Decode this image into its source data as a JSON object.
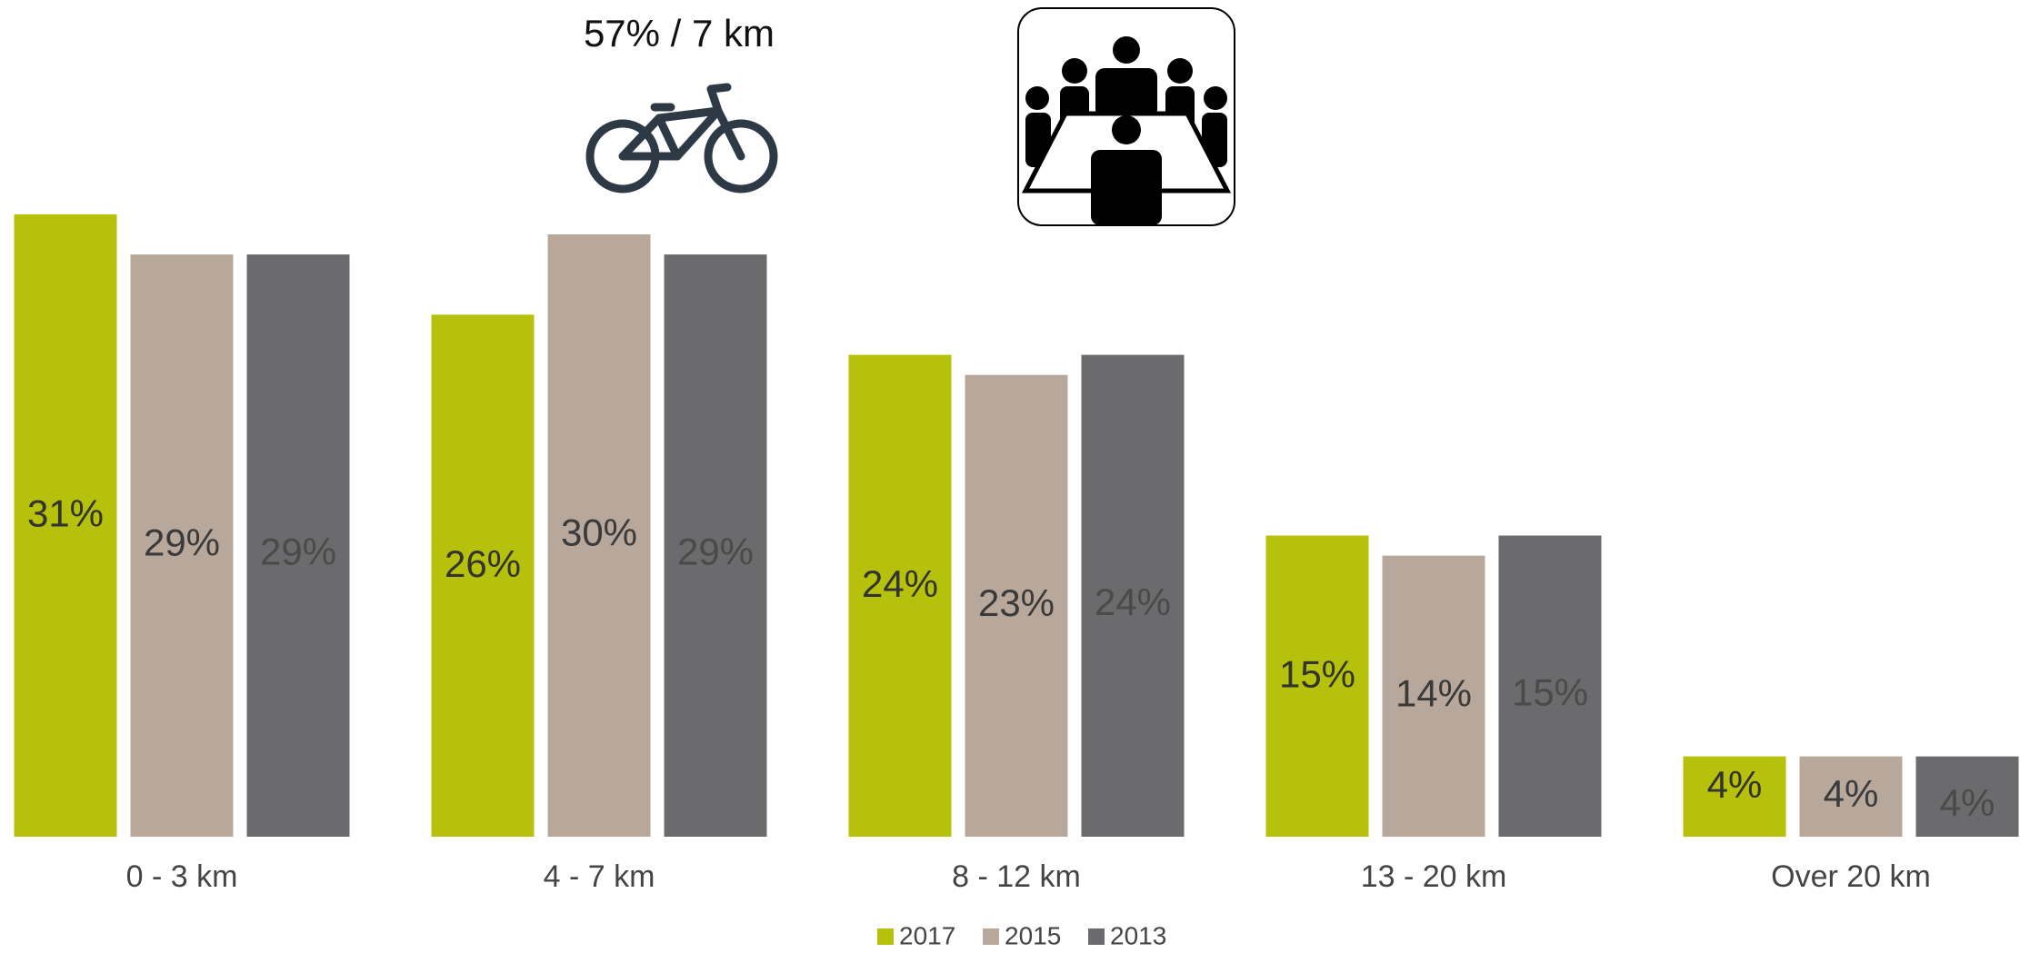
{
  "chart_data": {
    "type": "bar",
    "annotation": "57% /  7 km",
    "categories": [
      "0 - 3 km",
      "4 - 7 km",
      "8 - 12 km",
      "13 - 20 km",
      "Over 20 km"
    ],
    "series": [
      {
        "name": "2017",
        "color": "#b5c10a",
        "values": [
          31,
          26,
          24,
          15,
          4
        ],
        "value_labels": [
          "31%",
          "26%",
          "24%",
          "15%",
          "4%"
        ]
      },
      {
        "name": "2015",
        "color": "#b8a89b",
        "values": [
          29,
          30,
          23,
          14,
          4
        ],
        "value_labels": [
          "29%",
          "30%",
          "23%",
          "14%",
          "4%"
        ]
      },
      {
        "name": "2013",
        "color": "#6b6b6d",
        "values": [
          29,
          29,
          24,
          15,
          4
        ],
        "value_labels": [
          "29%",
          "29%",
          "24%",
          "15%",
          "4%"
        ]
      }
    ]
  }
}
